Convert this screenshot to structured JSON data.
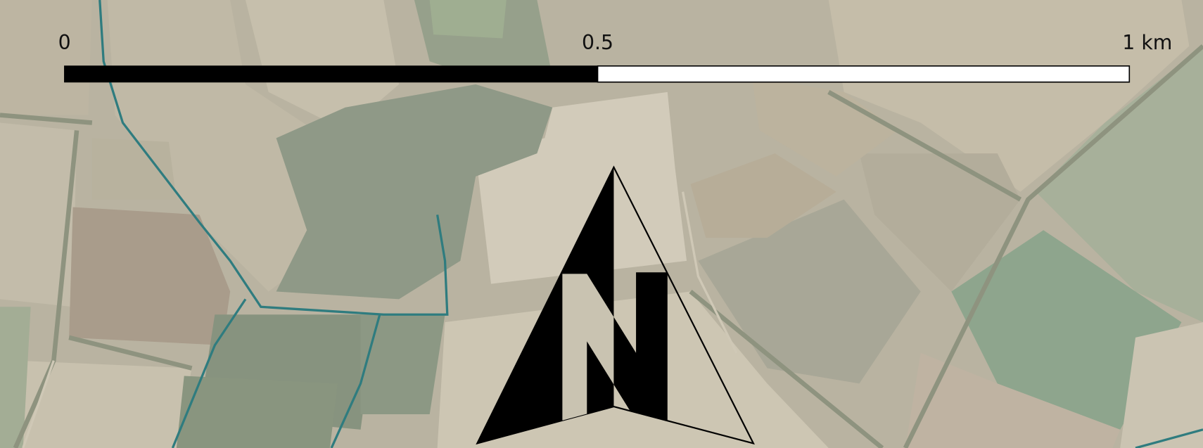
{
  "scale_bar": {
    "labels": [
      "0",
      "0.5",
      "1 km"
    ]
  }
}
